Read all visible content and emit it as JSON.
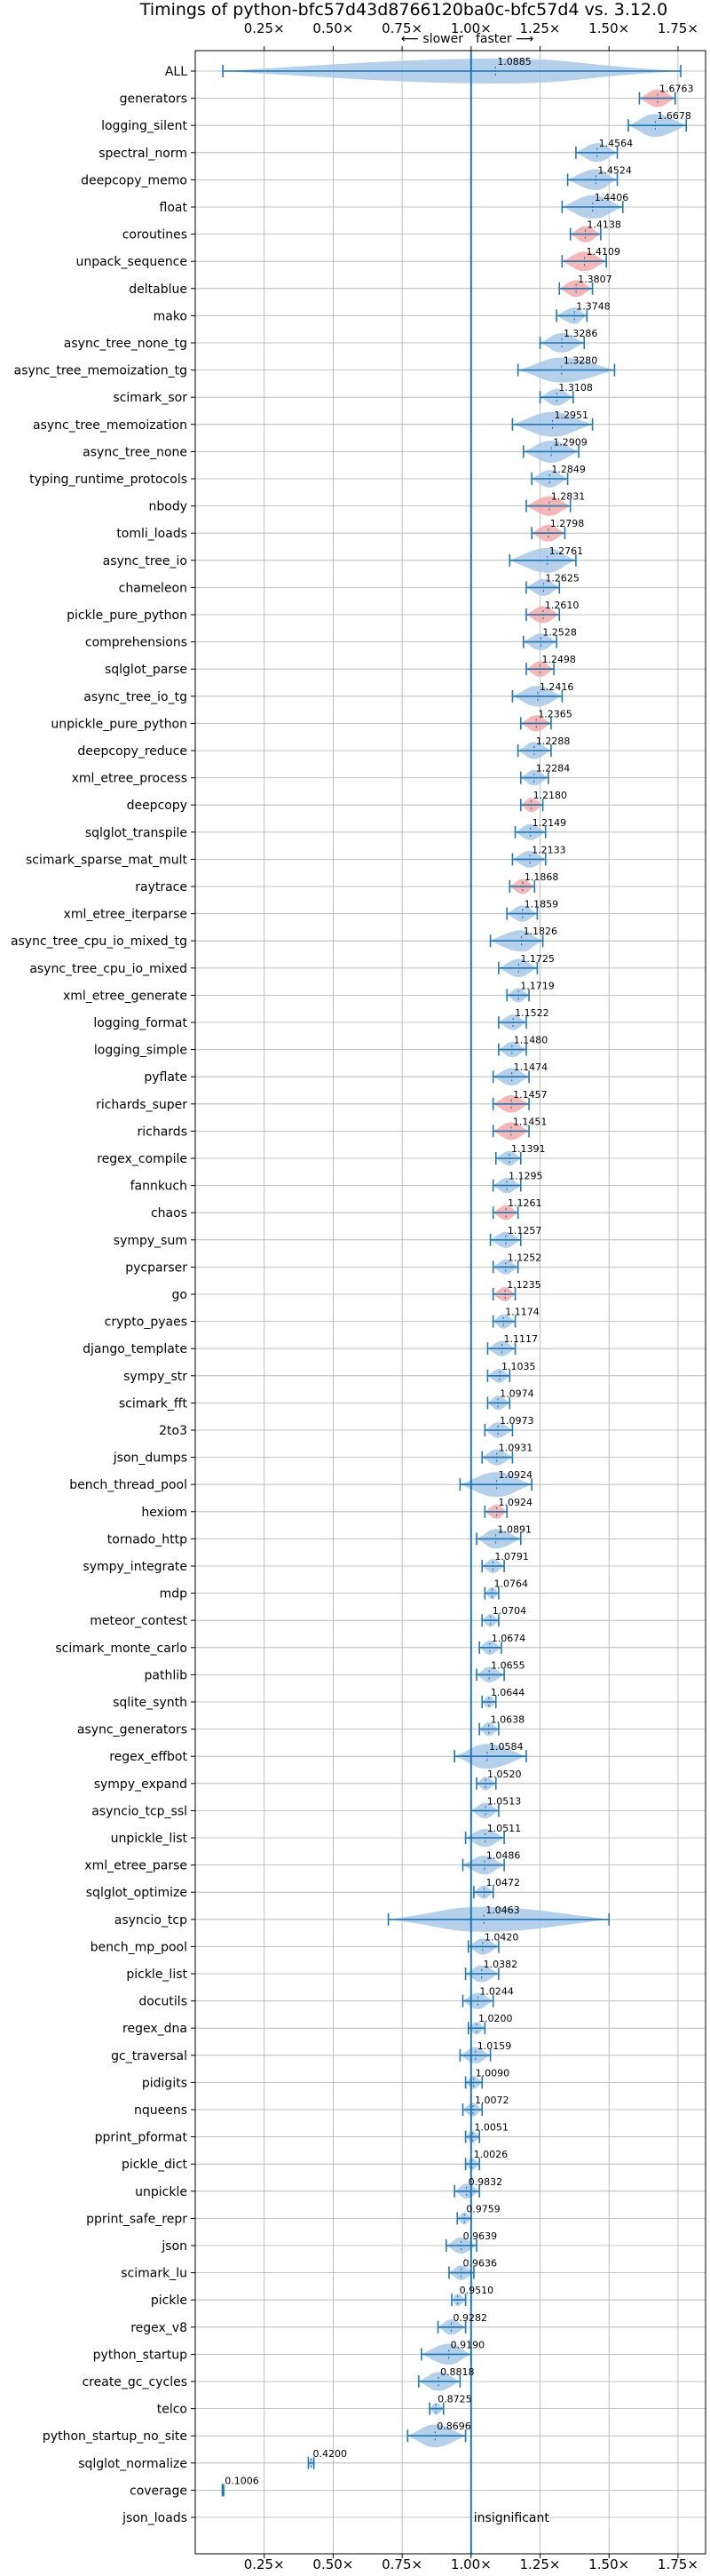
{
  "chart_data": {
    "type": "violin",
    "title": "Timings of python-bfc57d43d8766120ba0c-bfc57d4 vs. 3.12.0",
    "xlabel": "",
    "ylabel": "",
    "xlim": [
      0.0,
      1.85
    ],
    "x_ticks": [
      "0.25×",
      "0.50×",
      "0.75×",
      "1.00×",
      "1.25×",
      "1.50×",
      "1.75×"
    ],
    "x_tick_values": [
      0.25,
      0.5,
      0.75,
      1.0,
      1.25,
      1.5,
      1.75
    ],
    "slower_label": "⟵ slower",
    "faster_label": "faster ⟶",
    "insignificant_label": "insignificant",
    "colors": {
      "faster": "#a7c8e8",
      "slower": "#f4a9a9",
      "whisker": "#1f77b4"
    },
    "benchmarks": [
      {
        "name": "ALL",
        "value": 1.0885,
        "label": "1.0885",
        "min": 0.1,
        "max": 1.76,
        "color": "faster"
      },
      {
        "name": "generators",
        "value": 1.6763,
        "label": "1.6763",
        "min": 1.61,
        "max": 1.74,
        "color": "slower"
      },
      {
        "name": "logging_silent",
        "value": 1.6678,
        "label": "1.6678",
        "min": 1.57,
        "max": 1.78,
        "color": "faster"
      },
      {
        "name": "spectral_norm",
        "value": 1.4564,
        "label": "1.4564",
        "min": 1.38,
        "max": 1.53,
        "color": "faster"
      },
      {
        "name": "deepcopy_memo",
        "value": 1.4524,
        "label": "1.4524",
        "min": 1.35,
        "max": 1.53,
        "color": "faster"
      },
      {
        "name": "float",
        "value": 1.4406,
        "label": "1.4406",
        "min": 1.33,
        "max": 1.55,
        "color": "faster"
      },
      {
        "name": "coroutines",
        "value": 1.4138,
        "label": "1.4138",
        "min": 1.36,
        "max": 1.47,
        "color": "slower"
      },
      {
        "name": "unpack_sequence",
        "value": 1.4109,
        "label": "1.4109",
        "min": 1.33,
        "max": 1.49,
        "color": "slower"
      },
      {
        "name": "deltablue",
        "value": 1.3807,
        "label": "1.3807",
        "min": 1.32,
        "max": 1.44,
        "color": "slower"
      },
      {
        "name": "mako",
        "value": 1.3748,
        "label": "1.3748",
        "min": 1.31,
        "max": 1.42,
        "color": "faster"
      },
      {
        "name": "async_tree_none_tg",
        "value": 1.3286,
        "label": "1.3286",
        "min": 1.25,
        "max": 1.41,
        "color": "faster"
      },
      {
        "name": "async_tree_memoization_tg",
        "value": 1.328,
        "label": "1.3280",
        "min": 1.17,
        "max": 1.52,
        "color": "faster"
      },
      {
        "name": "scimark_sor",
        "value": 1.3108,
        "label": "1.3108",
        "min": 1.25,
        "max": 1.37,
        "color": "faster"
      },
      {
        "name": "async_tree_memoization",
        "value": 1.2951,
        "label": "1.2951",
        "min": 1.15,
        "max": 1.44,
        "color": "faster"
      },
      {
        "name": "async_tree_none",
        "value": 1.2909,
        "label": "1.2909",
        "min": 1.19,
        "max": 1.39,
        "color": "faster"
      },
      {
        "name": "typing_runtime_protocols",
        "value": 1.2849,
        "label": "1.2849",
        "min": 1.22,
        "max": 1.35,
        "color": "faster"
      },
      {
        "name": "nbody",
        "value": 1.2831,
        "label": "1.2831",
        "min": 1.2,
        "max": 1.36,
        "color": "slower"
      },
      {
        "name": "tomli_loads",
        "value": 1.2798,
        "label": "1.2798",
        "min": 1.22,
        "max": 1.34,
        "color": "slower"
      },
      {
        "name": "async_tree_io",
        "value": 1.2761,
        "label": "1.2761",
        "min": 1.14,
        "max": 1.38,
        "color": "faster"
      },
      {
        "name": "chameleon",
        "value": 1.2625,
        "label": "1.2625",
        "min": 1.2,
        "max": 1.32,
        "color": "faster"
      },
      {
        "name": "pickle_pure_python",
        "value": 1.261,
        "label": "1.2610",
        "min": 1.2,
        "max": 1.32,
        "color": "slower"
      },
      {
        "name": "comprehensions",
        "value": 1.2528,
        "label": "1.2528",
        "min": 1.19,
        "max": 1.31,
        "color": "faster"
      },
      {
        "name": "sqlglot_parse",
        "value": 1.2498,
        "label": "1.2498",
        "min": 1.2,
        "max": 1.3,
        "color": "slower"
      },
      {
        "name": "async_tree_io_tg",
        "value": 1.2416,
        "label": "1.2416",
        "min": 1.15,
        "max": 1.33,
        "color": "faster"
      },
      {
        "name": "unpickle_pure_python",
        "value": 1.2365,
        "label": "1.2365",
        "min": 1.18,
        "max": 1.29,
        "color": "slower"
      },
      {
        "name": "deepcopy_reduce",
        "value": 1.2288,
        "label": "1.2288",
        "min": 1.17,
        "max": 1.29,
        "color": "faster"
      },
      {
        "name": "xml_etree_process",
        "value": 1.2284,
        "label": "1.2284",
        "min": 1.18,
        "max": 1.28,
        "color": "faster"
      },
      {
        "name": "deepcopy",
        "value": 1.218,
        "label": "1.2180",
        "min": 1.18,
        "max": 1.26,
        "color": "slower"
      },
      {
        "name": "sqlglot_transpile",
        "value": 1.2149,
        "label": "1.2149",
        "min": 1.16,
        "max": 1.27,
        "color": "faster"
      },
      {
        "name": "scimark_sparse_mat_mult",
        "value": 1.2133,
        "label": "1.2133",
        "min": 1.15,
        "max": 1.27,
        "color": "faster"
      },
      {
        "name": "raytrace",
        "value": 1.1868,
        "label": "1.1868",
        "min": 1.14,
        "max": 1.23,
        "color": "slower"
      },
      {
        "name": "xml_etree_iterparse",
        "value": 1.1859,
        "label": "1.1859",
        "min": 1.13,
        "max": 1.24,
        "color": "faster"
      },
      {
        "name": "async_tree_cpu_io_mixed_tg",
        "value": 1.1826,
        "label": "1.1826",
        "min": 1.07,
        "max": 1.26,
        "color": "faster"
      },
      {
        "name": "async_tree_cpu_io_mixed",
        "value": 1.1725,
        "label": "1.1725",
        "min": 1.1,
        "max": 1.24,
        "color": "faster"
      },
      {
        "name": "xml_etree_generate",
        "value": 1.1719,
        "label": "1.1719",
        "min": 1.13,
        "max": 1.21,
        "color": "faster"
      },
      {
        "name": "logging_format",
        "value": 1.1522,
        "label": "1.1522",
        "min": 1.1,
        "max": 1.2,
        "color": "faster"
      },
      {
        "name": "logging_simple",
        "value": 1.148,
        "label": "1.1480",
        "min": 1.1,
        "max": 1.2,
        "color": "faster"
      },
      {
        "name": "pyflate",
        "value": 1.1474,
        "label": "1.1474",
        "min": 1.08,
        "max": 1.21,
        "color": "faster"
      },
      {
        "name": "richards_super",
        "value": 1.1457,
        "label": "1.1457",
        "min": 1.08,
        "max": 1.21,
        "color": "slower"
      },
      {
        "name": "richards",
        "value": 1.1451,
        "label": "1.1451",
        "min": 1.08,
        "max": 1.21,
        "color": "slower"
      },
      {
        "name": "regex_compile",
        "value": 1.1391,
        "label": "1.1391",
        "min": 1.09,
        "max": 1.18,
        "color": "faster"
      },
      {
        "name": "fannkuch",
        "value": 1.1295,
        "label": "1.1295",
        "min": 1.08,
        "max": 1.18,
        "color": "faster"
      },
      {
        "name": "chaos",
        "value": 1.1261,
        "label": "1.1261",
        "min": 1.08,
        "max": 1.17,
        "color": "slower"
      },
      {
        "name": "sympy_sum",
        "value": 1.1257,
        "label": "1.1257",
        "min": 1.07,
        "max": 1.18,
        "color": "faster"
      },
      {
        "name": "pycparser",
        "value": 1.1252,
        "label": "1.1252",
        "min": 1.08,
        "max": 1.17,
        "color": "faster"
      },
      {
        "name": "go",
        "value": 1.1235,
        "label": "1.1235",
        "min": 1.08,
        "max": 1.16,
        "color": "slower"
      },
      {
        "name": "crypto_pyaes",
        "value": 1.1174,
        "label": "1.1174",
        "min": 1.08,
        "max": 1.16,
        "color": "faster"
      },
      {
        "name": "django_template",
        "value": 1.1117,
        "label": "1.1117",
        "min": 1.06,
        "max": 1.16,
        "color": "faster"
      },
      {
        "name": "sympy_str",
        "value": 1.1035,
        "label": "1.1035",
        "min": 1.06,
        "max": 1.14,
        "color": "faster"
      },
      {
        "name": "scimark_fft",
        "value": 1.0974,
        "label": "1.0974",
        "min": 1.06,
        "max": 1.14,
        "color": "faster"
      },
      {
        "name": "2to3",
        "value": 1.0973,
        "label": "1.0973",
        "min": 1.05,
        "max": 1.15,
        "color": "faster"
      },
      {
        "name": "json_dumps",
        "value": 1.0931,
        "label": "1.0931",
        "min": 1.04,
        "max": 1.15,
        "color": "faster"
      },
      {
        "name": "bench_thread_pool",
        "value": 1.0924,
        "label": "1.0924",
        "min": 0.96,
        "max": 1.22,
        "color": "faster"
      },
      {
        "name": "hexiom",
        "value": 1.0924,
        "label": "1.0924",
        "min": 1.05,
        "max": 1.13,
        "color": "slower"
      },
      {
        "name": "tornado_http",
        "value": 1.0891,
        "label": "1.0891",
        "min": 1.02,
        "max": 1.18,
        "color": "faster"
      },
      {
        "name": "sympy_integrate",
        "value": 1.0791,
        "label": "1.0791",
        "min": 1.04,
        "max": 1.12,
        "color": "faster"
      },
      {
        "name": "mdp",
        "value": 1.0764,
        "label": "1.0764",
        "min": 1.05,
        "max": 1.1,
        "color": "faster"
      },
      {
        "name": "meteor_contest",
        "value": 1.0704,
        "label": "1.0704",
        "min": 1.04,
        "max": 1.1,
        "color": "faster"
      },
      {
        "name": "scimark_monte_carlo",
        "value": 1.0674,
        "label": "1.0674",
        "min": 1.03,
        "max": 1.11,
        "color": "faster"
      },
      {
        "name": "pathlib",
        "value": 1.0655,
        "label": "1.0655",
        "min": 1.02,
        "max": 1.12,
        "color": "faster"
      },
      {
        "name": "sqlite_synth",
        "value": 1.0644,
        "label": "1.0644",
        "min": 1.04,
        "max": 1.09,
        "color": "faster"
      },
      {
        "name": "async_generators",
        "value": 1.0638,
        "label": "1.0638",
        "min": 1.03,
        "max": 1.1,
        "color": "faster"
      },
      {
        "name": "regex_effbot",
        "value": 1.0584,
        "label": "1.0584",
        "min": 0.94,
        "max": 1.2,
        "color": "faster"
      },
      {
        "name": "sympy_expand",
        "value": 1.052,
        "label": "1.0520",
        "min": 1.02,
        "max": 1.09,
        "color": "faster"
      },
      {
        "name": "asyncio_tcp_ssl",
        "value": 1.0513,
        "label": "1.0513",
        "min": 1.0,
        "max": 1.1,
        "color": "faster"
      },
      {
        "name": "unpickle_list",
        "value": 1.0511,
        "label": "1.0511",
        "min": 0.98,
        "max": 1.12,
        "color": "faster"
      },
      {
        "name": "xml_etree_parse",
        "value": 1.0486,
        "label": "1.0486",
        "min": 0.97,
        "max": 1.12,
        "color": "faster"
      },
      {
        "name": "sqlglot_optimize",
        "value": 1.0472,
        "label": "1.0472",
        "min": 1.01,
        "max": 1.08,
        "color": "faster"
      },
      {
        "name": "asyncio_tcp",
        "value": 1.0463,
        "label": "1.0463",
        "min": 0.7,
        "max": 1.5,
        "color": "faster"
      },
      {
        "name": "bench_mp_pool",
        "value": 1.042,
        "label": "1.0420",
        "min": 0.99,
        "max": 1.1,
        "color": "faster"
      },
      {
        "name": "pickle_list",
        "value": 1.0382,
        "label": "1.0382",
        "min": 0.98,
        "max": 1.1,
        "color": "faster"
      },
      {
        "name": "docutils",
        "value": 1.0244,
        "label": "1.0244",
        "min": 0.97,
        "max": 1.08,
        "color": "faster"
      },
      {
        "name": "regex_dna",
        "value": 1.02,
        "label": "1.0200",
        "min": 0.99,
        "max": 1.05,
        "color": "faster"
      },
      {
        "name": "gc_traversal",
        "value": 1.0159,
        "label": "1.0159",
        "min": 0.96,
        "max": 1.07,
        "color": "faster"
      },
      {
        "name": "pidigits",
        "value": 1.009,
        "label": "1.0090",
        "min": 0.98,
        "max": 1.04,
        "color": "faster"
      },
      {
        "name": "nqueens",
        "value": 1.0072,
        "label": "1.0072",
        "min": 0.97,
        "max": 1.04,
        "color": "faster"
      },
      {
        "name": "pprint_pformat",
        "value": 1.0051,
        "label": "1.0051",
        "min": 0.98,
        "max": 1.03,
        "color": "faster"
      },
      {
        "name": "pickle_dict",
        "value": 1.0026,
        "label": "1.0026",
        "min": 0.98,
        "max": 1.03,
        "color": "faster"
      },
      {
        "name": "unpickle",
        "value": 0.9832,
        "label": "0.9832",
        "min": 0.94,
        "max": 1.03,
        "color": "faster"
      },
      {
        "name": "pprint_safe_repr",
        "value": 0.9759,
        "label": "0.9759",
        "min": 0.95,
        "max": 1.0,
        "color": "faster"
      },
      {
        "name": "json",
        "value": 0.9639,
        "label": "0.9639",
        "min": 0.91,
        "max": 1.02,
        "color": "faster"
      },
      {
        "name": "scimark_lu",
        "value": 0.9636,
        "label": "0.9636",
        "min": 0.92,
        "max": 1.01,
        "color": "faster"
      },
      {
        "name": "pickle",
        "value": 0.951,
        "label": "0.9510",
        "min": 0.93,
        "max": 0.98,
        "color": "faster"
      },
      {
        "name": "regex_v8",
        "value": 0.9282,
        "label": "0.9282",
        "min": 0.88,
        "max": 0.98,
        "color": "faster"
      },
      {
        "name": "python_startup",
        "value": 0.919,
        "label": "0.9190",
        "min": 0.82,
        "max": 1.0,
        "color": "faster"
      },
      {
        "name": "create_gc_cycles",
        "value": 0.8818,
        "label": "0.8818",
        "min": 0.81,
        "max": 0.96,
        "color": "faster"
      },
      {
        "name": "telco",
        "value": 0.8725,
        "label": "0.8725",
        "min": 0.85,
        "max": 0.9,
        "color": "faster"
      },
      {
        "name": "python_startup_no_site",
        "value": 0.8696,
        "label": "0.8696",
        "min": 0.77,
        "max": 0.98,
        "color": "faster"
      },
      {
        "name": "sqlglot_normalize",
        "value": 0.42,
        "label": "0.4200",
        "min": 0.41,
        "max": 0.43,
        "color": "faster"
      },
      {
        "name": "coverage",
        "value": 0.1006,
        "label": "0.1006",
        "min": 0.098,
        "max": 0.103,
        "color": "faster"
      },
      {
        "name": "json_loads",
        "value": null,
        "label": "",
        "min": null,
        "max": null,
        "color": "none"
      }
    ]
  }
}
